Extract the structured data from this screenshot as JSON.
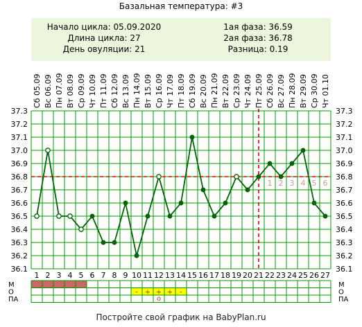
{
  "title": "Базальная температура: #3",
  "info": {
    "left": [
      "Начало цикла: 05.09.2020",
      "Длина цикла: 27",
      "День овуляции: 21"
    ],
    "right": [
      "1ая фаза: 36.59",
      "2ая фаза: 36.78",
      "Разница: 0.19"
    ]
  },
  "footer": "Постройте свой график на BabyPlan.ru",
  "colors": {
    "line": "#006400",
    "grid": "#009900",
    "threshold": "#dd0000",
    "menstruation": "#cc6666",
    "mark": "#ffff00",
    "info_bg": "#ecf6dc",
    "after_ovulation_label": "#cc9999"
  },
  "chart_data": {
    "type": "line",
    "title": "",
    "xlabel": "",
    "ylabel": "",
    "ylim": [
      36.1,
      37.3
    ],
    "grid": true,
    "x": [
      1,
      2,
      3,
      4,
      5,
      6,
      7,
      8,
      9,
      10,
      11,
      12,
      13,
      14,
      15,
      16,
      17,
      18,
      19,
      20,
      21,
      22,
      23,
      24,
      25,
      26,
      27
    ],
    "dates": [
      "Сб 05.09",
      "Вс 06.09",
      "Пн 07.09",
      "Вт 08.09",
      "Ср 09.09",
      "Чт 10.09",
      "Пт 11.09",
      "Сб 12.09",
      "Вс 13.09",
      "Пн 14.09",
      "Вт 15.09",
      "Ср 16.09",
      "Чт 17.09",
      "Пт 18.09",
      "Сб 19.09",
      "Вс 20.09",
      "Пн 21.09",
      "Вт 22.09",
      "Ср 23.09",
      "Чт 24.09",
      "Пт 25.09",
      "Сб 26.09",
      "Вс 27.09",
      "Пн 28.09",
      "Вт 29.09",
      "Ср 30.09",
      "Чт 01.10"
    ],
    "values": [
      36.5,
      37.0,
      36.5,
      36.5,
      36.4,
      36.5,
      36.3,
      36.3,
      36.6,
      36.2,
      36.5,
      36.8,
      36.5,
      36.6,
      37.1,
      36.7,
      36.5,
      36.6,
      36.8,
      36.7,
      36.8,
      36.9,
      36.8,
      36.9,
      37.0,
      36.6,
      36.5
    ],
    "open_markers": [
      1,
      2,
      3,
      4,
      5,
      12,
      19
    ],
    "y_ticks": [
      "36.1",
      "36.2",
      "36.3",
      "36.4",
      "36.5",
      "36.6",
      "36.7",
      "36.8",
      "36.9",
      "37.0",
      "37.1",
      "37.2",
      "37.3"
    ],
    "coverline": 36.8,
    "ovulation_day": 21,
    "post_ovulation_labels": [
      "1",
      "2",
      "3",
      "4",
      "5",
      "6"
    ],
    "moon_day": 15,
    "moon_icon": "crescent-moon-icon"
  },
  "rows": {
    "labels": [
      "М",
      "О",
      "ПА"
    ],
    "menstruation_days": [
      1,
      2,
      3,
      4,
      5
    ],
    "mucus_marks": [
      {
        "day": 10,
        "symbol": "-"
      },
      {
        "day": 11,
        "symbol": "+"
      },
      {
        "day": 12,
        "symbol": "+"
      },
      {
        "day": 13,
        "symbol": "+"
      },
      {
        "day": 14,
        "symbol": "-"
      }
    ],
    "intercourse_marks": [
      {
        "day": 12,
        "symbol": "o"
      }
    ]
  }
}
